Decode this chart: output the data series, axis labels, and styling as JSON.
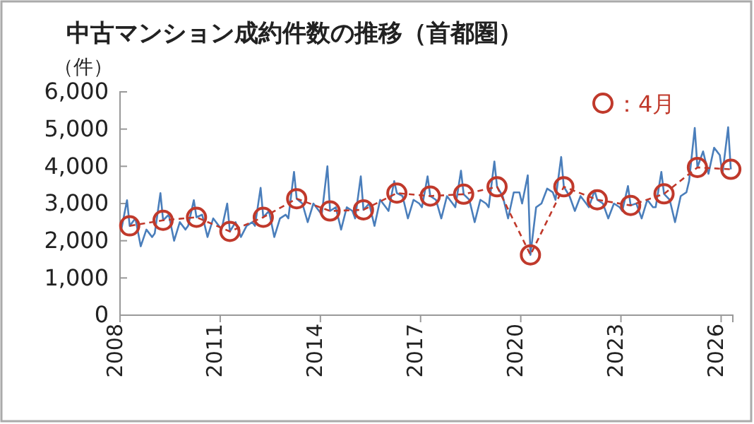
{
  "chart_data": {
    "type": "line",
    "title": "中古マンション成約件数の推移（首都圏）",
    "ylabel": "（件）",
    "xlim": [
      2008,
      2026.35
    ],
    "xticks": [
      2008,
      2011,
      2014,
      2017,
      2020,
      2023,
      2026
    ],
    "ylim": [
      0,
      6000
    ],
    "yticks": [
      {
        "value": 0,
        "label": "0"
      },
      {
        "value": 1000,
        "label": "1,000"
      },
      {
        "value": 2000,
        "label": "2,000"
      },
      {
        "value": 3000,
        "label": "3,000"
      },
      {
        "value": 4000,
        "label": "4,000"
      },
      {
        "value": 5000,
        "label": "5,000"
      },
      {
        "value": 6000,
        "label": "6,000"
      }
    ],
    "grid": false,
    "legend": "top right",
    "series": [
      {
        "color": "#4a7ebb",
        "marker": "none",
        "line_style": "solid",
        "x": [
          2008.04,
          2008.21,
          2008.29,
          2008.46,
          2008.62,
          2008.79,
          2008.96,
          2009.04,
          2009.21,
          2009.29,
          2009.46,
          2009.62,
          2009.79,
          2009.96,
          2010.04,
          2010.21,
          2010.29,
          2010.46,
          2010.62,
          2010.79,
          2010.96,
          2011.04,
          2011.21,
          2011.29,
          2011.46,
          2011.62,
          2011.79,
          2011.96,
          2012.04,
          2012.21,
          2012.29,
          2012.46,
          2012.62,
          2012.79,
          2012.96,
          2013.04,
          2013.21,
          2013.29,
          2013.46,
          2013.62,
          2013.79,
          2013.96,
          2014.04,
          2014.21,
          2014.29,
          2014.46,
          2014.62,
          2014.79,
          2014.96,
          2015.04,
          2015.21,
          2015.29,
          2015.46,
          2015.62,
          2015.79,
          2015.96,
          2016.04,
          2016.21,
          2016.29,
          2016.46,
          2016.62,
          2016.79,
          2016.96,
          2017.04,
          2017.21,
          2017.29,
          2017.46,
          2017.62,
          2017.79,
          2017.96,
          2018.04,
          2018.21,
          2018.29,
          2018.46,
          2018.62,
          2018.79,
          2018.96,
          2019.04,
          2019.21,
          2019.29,
          2019.46,
          2019.62,
          2019.79,
          2019.96,
          2020.04,
          2020.21,
          2020.29,
          2020.46,
          2020.62,
          2020.79,
          2020.96,
          2021.04,
          2021.21,
          2021.29,
          2021.46,
          2021.62,
          2021.79,
          2021.96,
          2022.04,
          2022.21,
          2022.29,
          2022.46,
          2022.62,
          2022.79,
          2022.96,
          2023.04,
          2023.21,
          2023.29,
          2023.46,
          2023.62,
          2023.79,
          2023.96,
          2024.04,
          2024.21,
          2024.29,
          2024.46,
          2024.62,
          2024.79,
          2024.96,
          2025.04,
          2025.21,
          2025.29,
          2025.46,
          2025.62,
          2025.79,
          2025.96,
          2026.04,
          2026.21,
          2026.29
        ],
        "values": [
          2300,
          3090,
          2400,
          2600,
          1850,
          2300,
          2100,
          2200,
          3280,
          2550,
          2700,
          2000,
          2500,
          2300,
          2400,
          3090,
          2630,
          2700,
          2100,
          2600,
          2400,
          2300,
          3000,
          2250,
          2500,
          2100,
          2400,
          2500,
          2400,
          3420,
          2630,
          2800,
          2100,
          2600,
          2700,
          2600,
          3850,
          3130,
          3000,
          2500,
          3000,
          2800,
          2700,
          4000,
          2800,
          2900,
          2300,
          2900,
          2800,
          2600,
          3730,
          2830,
          3000,
          2400,
          3100,
          2900,
          2800,
          3600,
          3280,
          3200,
          2600,
          3100,
          3000,
          2900,
          3730,
          3200,
          3100,
          2600,
          3200,
          3000,
          2900,
          3880,
          3250,
          3100,
          2500,
          3100,
          3000,
          2900,
          4130,
          3450,
          3200,
          2600,
          3300,
          3300,
          3000,
          3760,
          1620,
          2900,
          3000,
          3400,
          3300,
          3100,
          4250,
          3450,
          3200,
          2800,
          3200,
          3000,
          2900,
          3350,
          3100,
          3000,
          2600,
          3000,
          2900,
          2800,
          3470,
          2950,
          3000,
          2600,
          3100,
          2900,
          2900,
          3850,
          3260,
          3100,
          2500,
          3200,
          3300,
          3600,
          5030,
          3970,
          4400,
          3800,
          4500,
          4300,
          3800,
          5050,
          3920
        ]
      },
      {
        "name": "：4月",
        "color": "#c0392b",
        "marker": "circle",
        "line_style": "dashed",
        "x": [
          2008.29,
          2009.29,
          2010.29,
          2011.29,
          2012.29,
          2013.29,
          2014.29,
          2015.29,
          2016.29,
          2017.29,
          2018.29,
          2019.29,
          2020.29,
          2021.29,
          2022.29,
          2023.29,
          2024.29,
          2025.29,
          2026.29
        ],
        "values": [
          2400,
          2550,
          2630,
          2250,
          2630,
          3130,
          2800,
          2830,
          3280,
          3200,
          3250,
          3450,
          1620,
          3450,
          3100,
          2950,
          3260,
          3970,
          3920
        ]
      }
    ]
  }
}
